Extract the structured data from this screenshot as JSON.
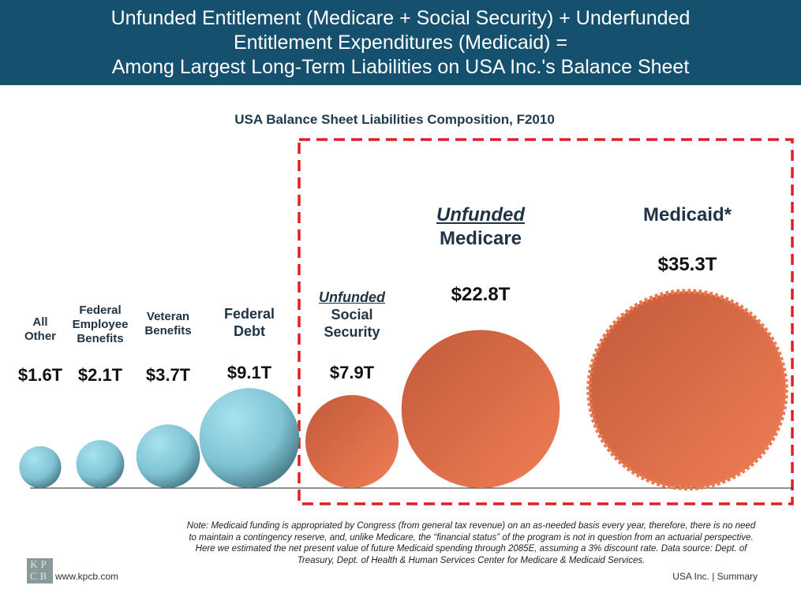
{
  "header": {
    "lines": [
      "Unfunded Entitlement (Medicare + Social Security) + Underfunded",
      "Entitlement Expenditures (Medicaid) =",
      "Among Largest Long-Term Liabilities on USA Inc.'s Balance Sheet"
    ]
  },
  "chart_data": {
    "type": "bubble",
    "title": "USA Balance Sheet Liabilities Composition, F2010",
    "unit": "$ trillions",
    "categories": [
      "All Other",
      "Federal Employee Benefits",
      "Veteran Benefits",
      "Federal Debt",
      "Unfunded Social Security",
      "Unfunded Medicare",
      "Medicaid*"
    ],
    "values": [
      1.6,
      2.1,
      3.7,
      9.1,
      7.9,
      22.8,
      35.3
    ],
    "value_labels": [
      "$1.6T",
      "$2.1T",
      "$3.7T",
      "$9.1T",
      "$7.9T",
      "$22.8T",
      "$35.3T"
    ],
    "label_lines": [
      [
        "All",
        "Other"
      ],
      [
        "Federal",
        "Employee",
        "Benefits"
      ],
      [
        "Veteran",
        "Benefits"
      ],
      [
        "Federal",
        "Debt"
      ],
      [
        "Unfunded",
        "Social",
        "Security"
      ],
      [
        "Unfunded",
        "Medicare"
      ],
      [
        "Medicaid*"
      ]
    ],
    "highlighted": [
      "Unfunded Social Security",
      "Unfunded Medicare",
      "Medicaid*"
    ]
  },
  "colors": {
    "header": "#15516f",
    "blue_bubble": "#8fd0e0",
    "orange_bubble": "#e2724a",
    "highlight_box": "#e02020"
  },
  "note": "Note: Medicaid funding is appropriated by Congress (from general tax revenue) on an as-needed basis every year, therefore, there is no need to maintain a contingency reserve, and, unlike Medicare, the “financial status” of the program is not in question from an actuarial perspective. Here we estimated the net present value of future Medicaid spending through 2085E, assuming a 3% discount rate. Data source: Dept. of Treasury, Dept. of Health & Human Services Center for Medicare & Medicaid Services.",
  "footer": {
    "logo": "KPCB",
    "url": "www.kpcb.com",
    "right": "USA Inc. | Summary"
  }
}
